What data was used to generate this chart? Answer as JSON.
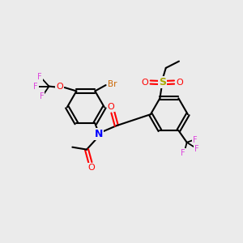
{
  "bg_color": "#ebebeb",
  "bond_color": "#000000",
  "atom_colors": {
    "F": "#dd44dd",
    "O": "#ff0000",
    "Br": "#cc6600",
    "N": "#0000ff",
    "S": "#aaaa00",
    "C": "#000000"
  }
}
